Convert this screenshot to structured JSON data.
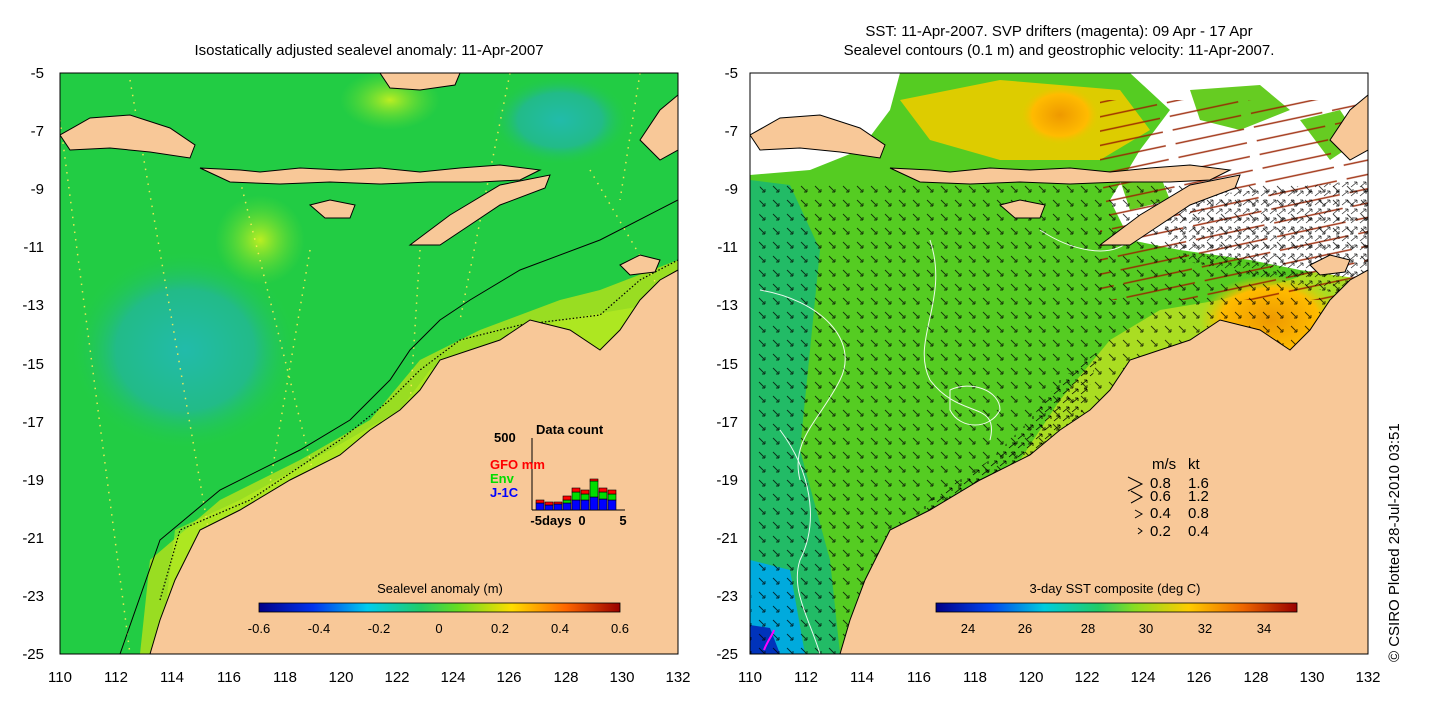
{
  "left_panel": {
    "title": "Isostatically adjusted sealevel anomaly: 11-Apr-2007",
    "y_ticks": [
      "-5",
      "-7",
      "-9",
      "-11",
      "-13",
      "-15",
      "-17",
      "-19",
      "-21",
      "-23",
      "-25"
    ],
    "x_ticks": [
      "110",
      "112",
      "114",
      "116",
      "118",
      "120",
      "122",
      "124",
      "126",
      "128",
      "130",
      "132"
    ],
    "colorbar": {
      "label": "Sealevel anomaly (m)",
      "ticks": [
        "-0.6",
        "-0.4",
        "-0.2",
        "0",
        "0.2",
        "0.4",
        "0.6"
      ]
    },
    "data_count": {
      "title": "Data count",
      "y_max_label": "500",
      "x_ticks": [
        "-5days",
        "0",
        "5"
      ],
      "legend": [
        {
          "label": "GFO mm",
          "color": "#ff0000"
        },
        {
          "label": "Env",
          "color": "#00dd00"
        },
        {
          "label": "J-1C",
          "color": "#0000ff"
        }
      ]
    }
  },
  "right_panel": {
    "title_line1": "SST: 11-Apr-2007. SVP drifters (magenta): 09 Apr - 17 Apr",
    "title_line2": "Sealevel contours (0.1 m) and geostrophic velocity: 11-Apr-2007.",
    "y_ticks": [
      "-5",
      "-7",
      "-9",
      "-11",
      "-13",
      "-15",
      "-17",
      "-19",
      "-21",
      "-23",
      "-25"
    ],
    "x_ticks": [
      "110",
      "112",
      "114",
      "116",
      "118",
      "120",
      "122",
      "124",
      "126",
      "128",
      "130",
      "132"
    ],
    "colorbar": {
      "label": "3-day SST composite (deg C)",
      "ticks": [
        "24",
        "26",
        "28",
        "30",
        "32",
        "34"
      ]
    },
    "speed_legend": {
      "header_ms": "m/s",
      "header_kt": "kt",
      "rows": [
        {
          "ms": "0.8",
          "kt": "1.6"
        },
        {
          "ms": "0.6",
          "kt": "1.2"
        },
        {
          "ms": "0.4",
          "kt": "0.8"
        },
        {
          "ms": "0.2",
          "kt": "0.4"
        }
      ]
    }
  },
  "credit": "© CSIRO Plotted 28-Jul-2010 03:51",
  "colors": {
    "land": "#f8c898",
    "ocean_green": "#22cc44",
    "sst_green": "#44cc22",
    "sst_orange": "#ee9900",
    "low_blue": "#00aadd"
  }
}
